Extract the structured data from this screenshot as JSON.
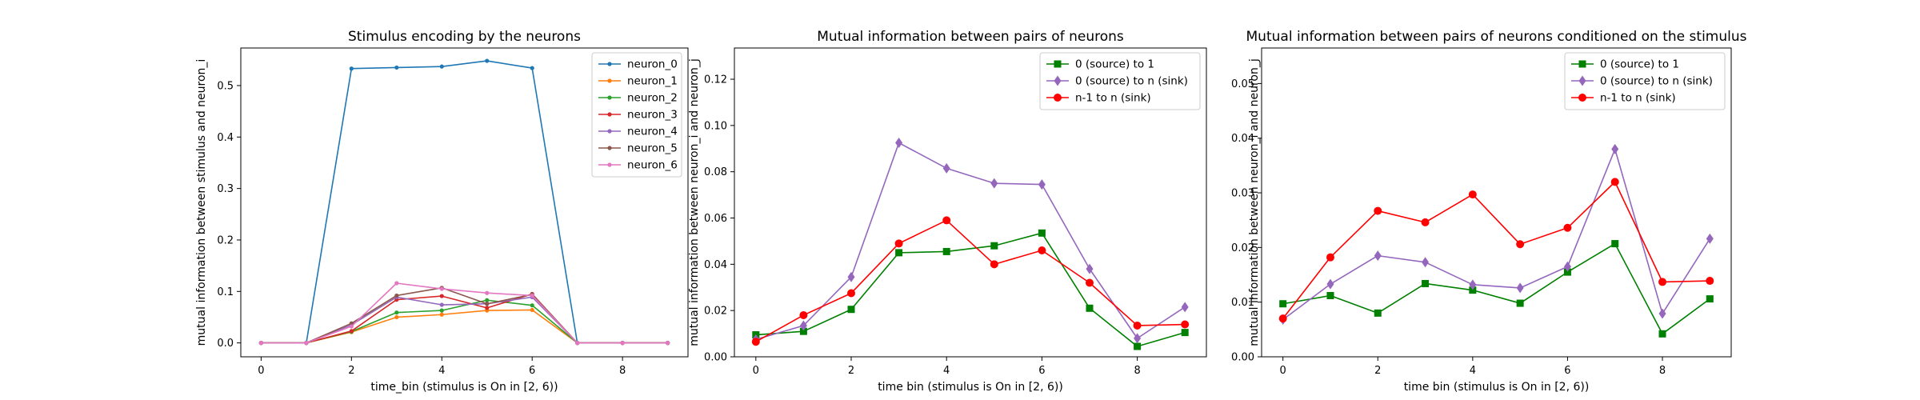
{
  "chart_data": [
    {
      "type": "line",
      "title": "Stimulus encoding by the neurons",
      "xlabel": "time_bin (stimulus is On in [2, 6))",
      "ylabel": "mutual information between stimulus and neuron_i",
      "xlim": [
        -0.45,
        9.45
      ],
      "ylim": [
        -0.027,
        0.573
      ],
      "xticks": [
        "0",
        "2",
        "4",
        "6",
        "8"
      ],
      "xtick_values": [
        0,
        2,
        4,
        6,
        8
      ],
      "yticks": [
        "0.0",
        "0.1",
        "0.2",
        "0.3",
        "0.4",
        "0.5"
      ],
      "ytick_values": [
        0.0,
        0.1,
        0.2,
        0.3,
        0.4,
        0.5
      ],
      "legend_position": "top-right",
      "x": [
        0,
        1,
        2,
        3,
        4,
        5,
        6,
        7,
        8,
        9
      ],
      "series": [
        {
          "name": "neuron_0",
          "color": "#1f77b4",
          "marker": "point",
          "values": [
            0.0,
            0.0,
            0.533,
            0.535,
            0.537,
            0.548,
            0.534,
            0.0,
            0.0,
            0.0
          ]
        },
        {
          "name": "neuron_1",
          "color": "#ff7f0e",
          "marker": "point",
          "values": [
            0.0,
            0.0,
            0.021,
            0.05,
            0.055,
            0.063,
            0.064,
            0.0,
            0.0,
            0.0
          ]
        },
        {
          "name": "neuron_2",
          "color": "#2ca02c",
          "marker": "point",
          "values": [
            0.0,
            0.0,
            0.022,
            0.059,
            0.063,
            0.083,
            0.073,
            0.0,
            0.0,
            0.0
          ]
        },
        {
          "name": "neuron_3",
          "color": "#d62728",
          "marker": "point",
          "values": [
            0.0,
            0.0,
            0.023,
            0.084,
            0.091,
            0.068,
            0.095,
            0.0,
            0.0,
            0.0
          ]
        },
        {
          "name": "neuron_4",
          "color": "#9467bd",
          "marker": "point",
          "values": [
            0.0,
            0.0,
            0.035,
            0.089,
            0.074,
            0.076,
            0.089,
            0.0,
            0.0,
            0.0
          ]
        },
        {
          "name": "neuron_5",
          "color": "#8c564b",
          "marker": "point",
          "values": [
            0.0,
            0.0,
            0.038,
            0.092,
            0.107,
            0.076,
            0.094,
            0.0,
            0.0,
            0.0
          ]
        },
        {
          "name": "neuron_6",
          "color": "#e377c2",
          "marker": "point",
          "values": [
            0.0,
            0.0,
            0.032,
            0.116,
            0.105,
            0.097,
            0.092,
            0.0,
            0.0,
            0.0
          ]
        }
      ]
    },
    {
      "type": "line",
      "title": "Mutual information between pairs of neurons",
      "xlabel": "time bin (stimulus is On in [2, 6))",
      "ylabel": "mutual information between neuron_i and neuron_j",
      "xlim": [
        -0.45,
        9.45
      ],
      "ylim": [
        0.0,
        0.1335
      ],
      "xticks": [
        "0",
        "2",
        "4",
        "6",
        "8"
      ],
      "xtick_values": [
        0,
        2,
        4,
        6,
        8
      ],
      "yticks": [
        "0.00",
        "0.02",
        "0.04",
        "0.06",
        "0.08",
        "0.10",
        "0.12"
      ],
      "ytick_values": [
        0.0,
        0.02,
        0.04,
        0.06,
        0.08,
        0.1,
        0.12
      ],
      "legend_position": "top-right",
      "x": [
        0,
        1,
        2,
        3,
        4,
        5,
        6,
        7,
        8,
        9
      ],
      "series": [
        {
          "name": "0 (source) to 1",
          "color": "#008000",
          "marker": "square",
          "values": [
            0.0095,
            0.011,
            0.0205,
            0.045,
            0.0455,
            0.048,
            0.0535,
            0.021,
            0.0045,
            0.0105
          ]
        },
        {
          "name": "0 (source) to n (sink)",
          "color": "#9467bd",
          "marker": "diamond",
          "values": [
            0.0075,
            0.0135,
            0.0345,
            0.0925,
            0.0815,
            0.075,
            0.0745,
            0.038,
            0.008,
            0.0215
          ]
        },
        {
          "name": "n-1 to n (sink)",
          "color": "#ff0000",
          "marker": "circle",
          "values": [
            0.0065,
            0.018,
            0.0275,
            0.049,
            0.059,
            0.04,
            0.046,
            0.032,
            0.0135,
            0.014
          ]
        }
      ]
    },
    {
      "type": "line",
      "title": "Mutual information between pairs of neurons conditioned on the stimulus",
      "xlabel": "time bin (stimulus is On in [2, 6))",
      "ylabel": "mutual information between neuron_i and neuron_j",
      "xlim": [
        -0.45,
        9.45
      ],
      "ylim": [
        0.0,
        0.0565
      ],
      "xticks": [
        "0",
        "2",
        "4",
        "6",
        "8"
      ],
      "xtick_values": [
        0,
        2,
        4,
        6,
        8
      ],
      "yticks": [
        "0.00",
        "0.01",
        "0.02",
        "0.03",
        "0.04",
        "0.05"
      ],
      "ytick_values": [
        0.0,
        0.01,
        0.02,
        0.03,
        0.04,
        0.05
      ],
      "legend_position": "top-right",
      "x": [
        0,
        1,
        2,
        3,
        4,
        5,
        6,
        7,
        8,
        9
      ],
      "series": [
        {
          "name": "0 (source) to 1",
          "color": "#008000",
          "marker": "square",
          "values": [
            0.0097,
            0.0112,
            0.008,
            0.0134,
            0.0122,
            0.0098,
            0.0155,
            0.0207,
            0.0042,
            0.0106
          ]
        },
        {
          "name": "0 (source) to n (sink)",
          "color": "#9467bd",
          "marker": "diamond",
          "values": [
            0.0068,
            0.0133,
            0.0185,
            0.0173,
            0.0132,
            0.0126,
            0.0165,
            0.038,
            0.0079,
            0.0216
          ]
        },
        {
          "name": "n-1 to n (sink)",
          "color": "#ff0000",
          "marker": "circle",
          "values": [
            0.007,
            0.0182,
            0.0267,
            0.0246,
            0.0297,
            0.0206,
            0.0236,
            0.032,
            0.0137,
            0.0139
          ]
        }
      ]
    }
  ]
}
